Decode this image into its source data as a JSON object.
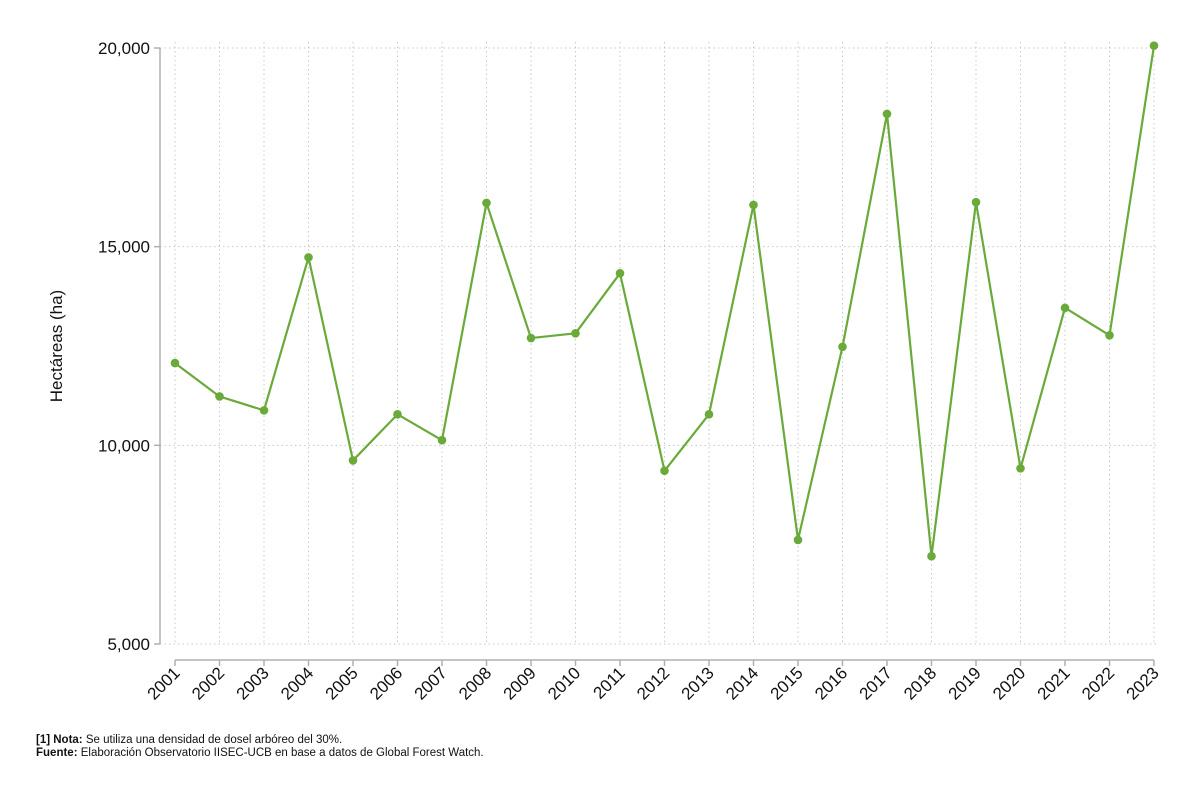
{
  "chart_data": {
    "type": "line",
    "title": "",
    "xlabel": "",
    "ylabel": "Hectáreas (ha)",
    "ylim": [
      5000,
      20000
    ],
    "yticks": [
      5000,
      10000,
      15000,
      20000
    ],
    "ytick_labels": [
      "5,000",
      "10,000",
      "15,000",
      "20,000"
    ],
    "grid": true,
    "color": "#6aaa3a",
    "categories": [
      "2001",
      "2002",
      "2003",
      "2004",
      "2005",
      "2006",
      "2007",
      "2008",
      "2009",
      "2010",
      "2011",
      "2012",
      "2013",
      "2014",
      "2015",
      "2016",
      "2017",
      "2018",
      "2019",
      "2020",
      "2021",
      "2022",
      "2023"
    ],
    "series": [
      {
        "values": [
          12070,
          11230,
          10880,
          14730,
          9620,
          10780,
          10130,
          16100,
          12700,
          12820,
          14330,
          9360,
          10780,
          16050,
          7620,
          12480,
          18340,
          7210,
          16120,
          9420,
          13460,
          12770,
          20060
        ]
      }
    ]
  },
  "footnote": {
    "note_label": "[1] Nota:",
    "note_text": " Se utiliza una densidad de dosel arbóreo del 30%.",
    "source_label": "Fuente:",
    "source_text": " Elaboración Observatorio IISEC-UCB en base a datos de Global Forest Watch."
  }
}
